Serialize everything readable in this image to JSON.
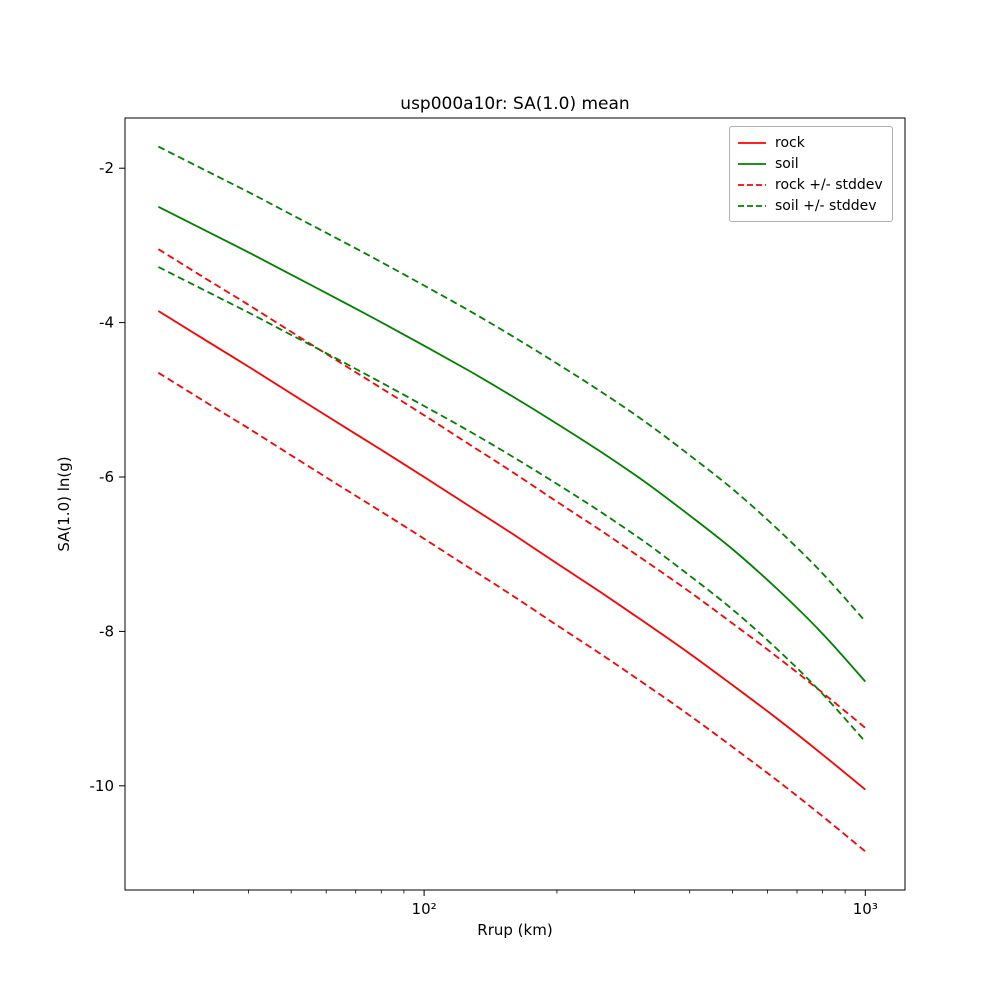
{
  "chart_data": {
    "type": "line",
    "title": "usp000a10r: SA(1.0) mean",
    "xlabel": "Rrup (km)",
    "ylabel": "SA(1.0) ln(g)",
    "x_scale": "log",
    "y_scale": "linear",
    "xlim": [
      21,
      1230
    ],
    "ylim": [
      -11.35,
      -1.35
    ],
    "grid": false,
    "legend_position": "upper right",
    "x_ticks": [
      {
        "value": 100,
        "label": "10²"
      },
      {
        "value": 1000,
        "label": "10³"
      }
    ],
    "x_minor_ticks": [
      30,
      40,
      50,
      60,
      70,
      80,
      90,
      200,
      300,
      400,
      500,
      600,
      700,
      800,
      900
    ],
    "y_ticks": [
      -2,
      -4,
      -6,
      -8,
      -10
    ],
    "x": [
      25,
      32,
      40,
      50,
      63,
      79,
      100,
      126,
      158,
      200,
      251,
      316,
      398,
      501,
      631,
      794,
      1000
    ],
    "stddev": {
      "rock": 0.8,
      "soil": 0.78
    },
    "series": [
      {
        "label": "rock",
        "color": "#ff0000",
        "dash": false,
        "values": [
          -3.85,
          -4.23,
          -4.57,
          -4.92,
          -5.28,
          -5.63,
          -6.0,
          -6.37,
          -6.73,
          -7.12,
          -7.49,
          -7.88,
          -8.28,
          -8.7,
          -9.13,
          -9.58,
          -10.05
        ]
      },
      {
        "label": "soil",
        "color": "#008000",
        "dash": false,
        "values": [
          -2.5,
          -2.81,
          -3.09,
          -3.38,
          -3.68,
          -3.98,
          -4.3,
          -4.62,
          -4.95,
          -5.31,
          -5.67,
          -6.06,
          -6.49,
          -6.94,
          -7.45,
          -8.01,
          -8.65
        ]
      },
      {
        "label": "rock +/- stddev",
        "color": "#ff0000",
        "dash": true,
        "bands": {
          "upper": [
            -3.05,
            -3.43,
            -3.77,
            -4.12,
            -4.48,
            -4.83,
            -5.2,
            -5.57,
            -5.93,
            -6.32,
            -6.69,
            -7.08,
            -7.48,
            -7.9,
            -8.33,
            -8.78,
            -9.25
          ],
          "lower": [
            -4.65,
            -5.03,
            -5.37,
            -5.72,
            -6.08,
            -6.43,
            -6.8,
            -7.17,
            -7.53,
            -7.92,
            -8.29,
            -8.68,
            -9.08,
            -9.5,
            -9.93,
            -10.38,
            -10.85
          ]
        }
      },
      {
        "label": "soil +/- stddev",
        "color": "#008000",
        "dash": true,
        "bands": {
          "upper": [
            -1.72,
            -2.03,
            -2.31,
            -2.6,
            -2.9,
            -3.2,
            -3.52,
            -3.84,
            -4.17,
            -4.53,
            -4.89,
            -5.28,
            -5.71,
            -6.16,
            -6.67,
            -7.23,
            -7.87
          ],
          "lower": [
            -3.28,
            -3.59,
            -3.87,
            -4.16,
            -4.46,
            -4.76,
            -5.08,
            -5.4,
            -5.73,
            -6.09,
            -6.45,
            -6.84,
            -7.27,
            -7.72,
            -8.23,
            -8.79,
            -9.43
          ]
        }
      }
    ]
  }
}
